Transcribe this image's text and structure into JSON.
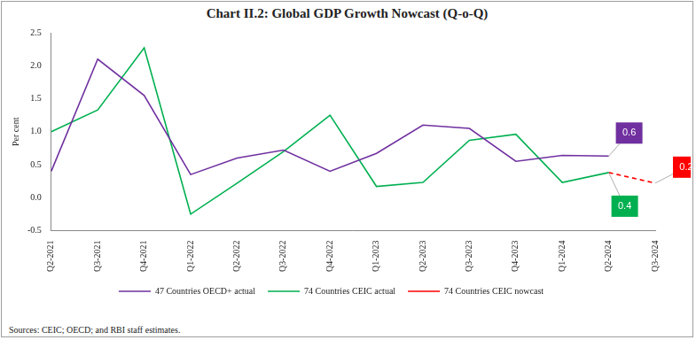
{
  "chart_data": {
    "type": "line",
    "title": "Chart II.2: Global GDP Growth Nowcast (Q-o-Q)",
    "y_label": "Per cent",
    "source": "Sources: CEIC; OECD; and RBI staff estimates.",
    "categories": [
      "Q2-2021",
      "Q3-2021",
      "Q4-2021",
      "Q1-2022",
      "Q2-2022",
      "Q3-2022",
      "Q4-2022",
      "Q1-2023",
      "Q2-2023",
      "Q3-2023",
      "Q4-2023",
      "Q1-2024",
      "Q2-2024",
      "Q3-2024"
    ],
    "series": [
      {
        "name": "47 Countries OECD+ actual",
        "color": "#7030a0",
        "line_style": "solid",
        "values": [
          0.4,
          2.1,
          1.55,
          0.35,
          0.6,
          0.72,
          0.4,
          0.67,
          1.1,
          1.05,
          0.55,
          0.64,
          0.63,
          null
        ]
      },
      {
        "name": "74 Countries CEIC actual",
        "color": "#00b050",
        "line_style": "solid",
        "values": [
          1.0,
          1.33,
          2.27,
          -0.25,
          0.22,
          0.7,
          1.25,
          0.17,
          0.23,
          0.87,
          0.96,
          0.23,
          0.38,
          null
        ]
      },
      {
        "name": "74 Countries CEIC nowcast",
        "color": "#ff0000",
        "line_style": "dashed",
        "values": [
          null,
          null,
          null,
          null,
          null,
          null,
          null,
          null,
          null,
          null,
          null,
          null,
          0.38,
          0.22
        ]
      }
    ],
    "annotations": [
      {
        "text": "0.6",
        "series": "47 Countries OECD+ actual"
      },
      {
        "text": "0.4",
        "series": "74 Countries CEIC actual"
      },
      {
        "text": "0.2",
        "series": "74 Countries CEIC nowcast"
      }
    ],
    "ylim": [
      -0.5,
      2.5
    ],
    "yticks": [
      -0.5,
      {
        "value": 0,
        "label": "0.0"
      },
      0.5,
      {
        "value": 1,
        "label": "1.0"
      },
      1.5,
      {
        "value": 2,
        "label": "2.0"
      },
      2.5
    ],
    "grid": false,
    "legend": "bottom"
  }
}
